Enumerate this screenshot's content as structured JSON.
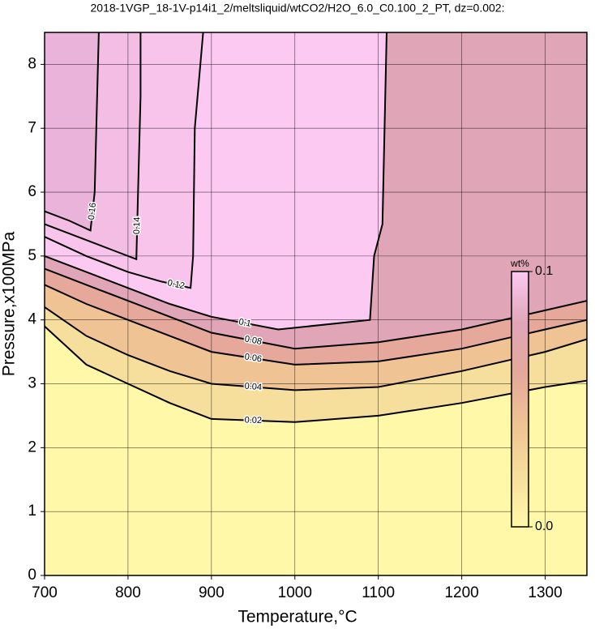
{
  "chart_data": {
    "type": "contour",
    "title": "2018-1VGP_18-1V-p14i1_2/meltsliquid/wtCO2/H2O_6.0_C0.100_2_PT, dz=0.002:",
    "x_label": "Temperature,°C",
    "y_label": "Pressure,x100MPa",
    "xlim": [
      700,
      1350
    ],
    "xticks": [
      700,
      800,
      900,
      1000,
      1100,
      1200,
      1300
    ],
    "ylim": [
      0,
      8.5
    ],
    "yticks": [
      0,
      1,
      2,
      3,
      4,
      5,
      6,
      7,
      8
    ],
    "grid": true,
    "background": "#fff8a8",
    "series": [
      {
        "name": "0.02",
        "color": "#000000",
        "fill": "#f6df9c",
        "x": [
          700,
          750,
          800,
          850,
          900,
          1000,
          1100,
          1200,
          1300,
          1350
        ],
        "values": [
          3.9,
          3.3,
          3.0,
          2.7,
          2.45,
          2.4,
          2.5,
          2.7,
          2.95,
          3.05
        ]
      },
      {
        "name": "0.04",
        "color": "#000000",
        "fill": "#efc394",
        "x": [
          700,
          750,
          800,
          850,
          900,
          1000,
          1100,
          1200,
          1300,
          1350
        ],
        "values": [
          4.2,
          3.75,
          3.45,
          3.2,
          3.0,
          2.9,
          2.95,
          3.2,
          3.5,
          3.7
        ]
      },
      {
        "name": "0.06",
        "color": "#000000",
        "fill": "#e6a89a",
        "x": [
          700,
          750,
          800,
          850,
          900,
          1000,
          1100,
          1200,
          1300,
          1350
        ],
        "values": [
          4.55,
          4.25,
          4.0,
          3.75,
          3.5,
          3.3,
          3.35,
          3.55,
          3.85,
          4.0
        ]
      },
      {
        "name": "0.08",
        "color": "#000000",
        "fill": "#e0a6b8",
        "x": [
          700,
          750,
          800,
          850,
          900,
          1000,
          1100,
          1200,
          1300,
          1350
        ],
        "values": [
          4.8,
          4.55,
          4.3,
          4.05,
          3.8,
          3.55,
          3.65,
          3.85,
          4.15,
          4.3
        ]
      },
      {
        "name": "0.1",
        "color": "#000000",
        "fill": "#fbc9f2",
        "x": [
          700,
          750,
          800,
          850,
          900,
          980,
          1090,
          1095,
          1105,
          1110
        ],
        "values": [
          5.0,
          4.75,
          4.5,
          4.25,
          4.05,
          3.85,
          4.0,
          5.0,
          5.5,
          8.5
        ]
      },
      {
        "name": "0.12",
        "color": "#000000",
        "fill": "#f8c4ec",
        "x": [
          700,
          750,
          800,
          840,
          875,
          878,
          880,
          890
        ],
        "values": [
          5.3,
          5.0,
          4.75,
          4.6,
          4.5,
          5.0,
          7.0,
          8.5
        ]
      },
      {
        "name": "0.14",
        "color": "#000000",
        "fill": "#f3bde4",
        "x": [
          700,
          750,
          780,
          810,
          812,
          815,
          815
        ],
        "values": [
          5.5,
          5.25,
          5.1,
          4.95,
          6.0,
          7.5,
          8.5
        ]
      },
      {
        "name": "0.16",
        "color": "#000000",
        "fill": "#eab4da",
        "x": [
          700,
          730,
          755,
          760,
          762,
          765
        ],
        "values": [
          5.7,
          5.55,
          5.4,
          6.0,
          7.0,
          8.5
        ]
      }
    ],
    "colorbar": {
      "label": "wt%",
      "lim": [
        0,
        0.1
      ],
      "ticks": [
        {
          "value": 0,
          "label": "0.0"
        },
        0.1
      ]
    }
  }
}
